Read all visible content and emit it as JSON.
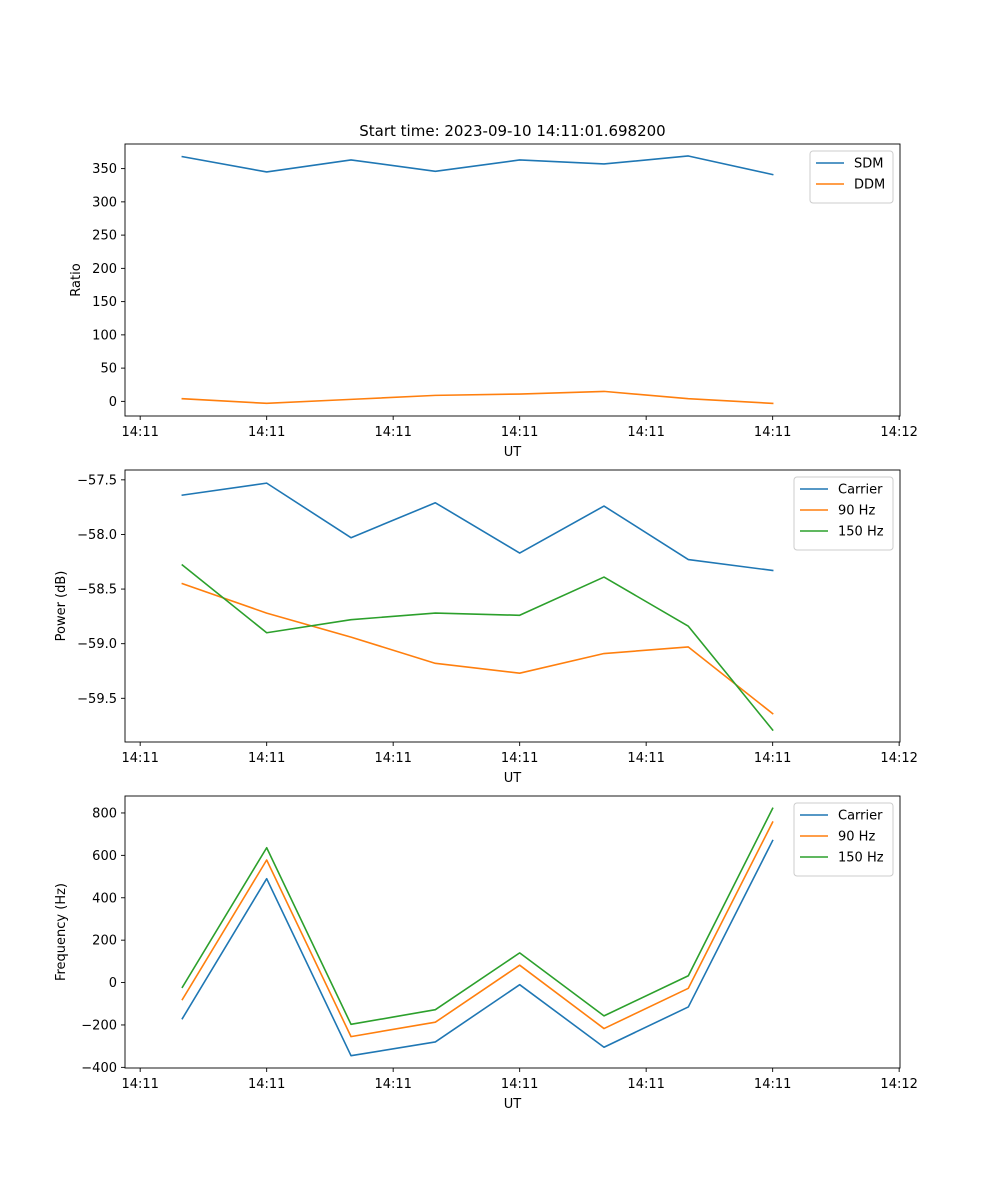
{
  "chart_data": [
    {
      "type": "line",
      "title": "Start time: 2023-09-10 14:11:01.698200",
      "xlabel": "UT",
      "ylabel": "Ratio",
      "x": [
        0,
        1,
        2,
        3,
        4,
        5,
        6,
        7
      ],
      "xticks": [
        {
          "pos": -0.5,
          "label": "14:11"
        },
        {
          "pos": 1.0,
          "label": "14:11"
        },
        {
          "pos": 2.5,
          "label": "14:11"
        },
        {
          "pos": 4.0,
          "label": "14:11"
        },
        {
          "pos": 5.5,
          "label": "14:11"
        },
        {
          "pos": 7.0,
          "label": "14:11"
        },
        {
          "pos": 8.5,
          "label": "14:12"
        }
      ],
      "xlim": [
        -0.68,
        8.51
      ],
      "ylim": [
        -22,
        387
      ],
      "yticks": [
        0,
        50,
        100,
        150,
        200,
        250,
        300,
        350
      ],
      "legend_location": "upper right",
      "series": [
        {
          "name": "SDM",
          "color": "#1f77b4",
          "values": [
            368,
            345,
            363,
            346,
            363,
            357,
            369,
            341
          ]
        },
        {
          "name": "DDM",
          "color": "#ff7f0e",
          "values": [
            4,
            -3,
            3,
            9,
            11,
            15,
            4,
            -3
          ]
        }
      ]
    },
    {
      "type": "line",
      "title": "",
      "xlabel": "UT",
      "ylabel": "Power (dB)",
      "x": [
        0,
        1,
        2,
        3,
        4,
        5,
        6,
        7
      ],
      "xticks": [
        {
          "pos": -0.5,
          "label": "14:11"
        },
        {
          "pos": 1.0,
          "label": "14:11"
        },
        {
          "pos": 2.5,
          "label": "14:11"
        },
        {
          "pos": 4.0,
          "label": "14:11"
        },
        {
          "pos": 5.5,
          "label": "14:11"
        },
        {
          "pos": 7.0,
          "label": "14:11"
        },
        {
          "pos": 8.5,
          "label": "14:12"
        }
      ],
      "xlim": [
        -0.68,
        8.51
      ],
      "ylim": [
        -59.9,
        -57.41
      ],
      "yticks": [
        -59.5,
        -59.0,
        -58.5,
        -58.0,
        -57.5
      ],
      "ytick_labels": [
        "−59.5",
        "−59.0",
        "−58.5",
        "−58.0",
        "−57.5"
      ],
      "legend_location": "upper right",
      "series": [
        {
          "name": "Carrier",
          "color": "#1f77b4",
          "values": [
            -57.64,
            -57.53,
            -58.03,
            -57.71,
            -58.17,
            -57.74,
            -58.23,
            -58.33
          ]
        },
        {
          "name": "90 Hz",
          "color": "#ff7f0e",
          "values": [
            -58.45,
            -58.72,
            -58.94,
            -59.18,
            -59.27,
            -59.09,
            -59.03,
            -59.64
          ]
        },
        {
          "name": "150 Hz",
          "color": "#2ca02c",
          "values": [
            -58.28,
            -58.9,
            -58.78,
            -58.72,
            -58.74,
            -58.39,
            -58.84,
            -59.79
          ]
        }
      ]
    },
    {
      "type": "line",
      "title": "",
      "xlabel": "UT",
      "ylabel": "Frequency (Hz)",
      "x": [
        0,
        1,
        2,
        3,
        4,
        5,
        6,
        7
      ],
      "xticks": [
        {
          "pos": -0.5,
          "label": "14:11"
        },
        {
          "pos": 1.0,
          "label": "14:11"
        },
        {
          "pos": 2.5,
          "label": "14:11"
        },
        {
          "pos": 4.0,
          "label": "14:11"
        },
        {
          "pos": 5.5,
          "label": "14:11"
        },
        {
          "pos": 7.0,
          "label": "14:11"
        },
        {
          "pos": 8.5,
          "label": "14:12"
        }
      ],
      "xlim": [
        -0.68,
        8.51
      ],
      "ylim": [
        -403,
        880
      ],
      "yticks": [
        -400,
        -200,
        0,
        200,
        400,
        600,
        800
      ],
      "ytick_labels": [
        "−400",
        "−200",
        "0",
        "200",
        "400",
        "600",
        "800"
      ],
      "legend_location": "upper right",
      "series": [
        {
          "name": "Carrier",
          "color": "#1f77b4",
          "values": [
            -170,
            490,
            -345,
            -280,
            -10,
            -305,
            -115,
            670
          ]
        },
        {
          "name": "90 Hz",
          "color": "#ff7f0e",
          "values": [
            -80,
            578,
            -255,
            -187,
            82,
            -217,
            -27,
            757
          ]
        },
        {
          "name": "150 Hz",
          "color": "#2ca02c",
          "values": [
            -22,
            636,
            -197,
            -128,
            140,
            -157,
            32,
            822
          ]
        }
      ]
    }
  ]
}
